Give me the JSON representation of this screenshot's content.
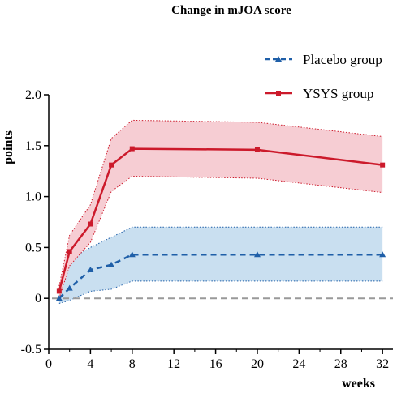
{
  "chart_data": {
    "type": "line",
    "title": "Change in mJOA score",
    "xlabel": "weeks",
    "ylabel": "points",
    "xlim": [
      0,
      33
    ],
    "ylim": [
      -0.5,
      2.0
    ],
    "x_ticks": [
      0,
      4,
      8,
      12,
      16,
      20,
      24,
      28,
      32
    ],
    "y_ticks": [
      -0.5,
      0,
      0.5,
      1.0,
      1.5,
      2.0
    ],
    "y_tick_labels": [
      "-0.5",
      "0",
      "0.5",
      "1.0",
      "1.5",
      "2.0"
    ],
    "reference_line": 0,
    "legend_position": "top-right",
    "series": [
      {
        "name": "Placebo group",
        "color": "#1f5fa8",
        "band_color": "#c9dff0",
        "line_style": "dashed",
        "marker": "triangle",
        "x": [
          1,
          2,
          4,
          6,
          8,
          20,
          32
        ],
        "values": [
          0.0,
          0.1,
          0.28,
          0.33,
          0.43,
          0.43,
          0.43
        ],
        "upper": [
          0.05,
          0.38,
          0.5,
          0.6,
          0.7,
          0.7,
          0.7
        ],
        "lower": [
          -0.05,
          -0.02,
          0.07,
          0.09,
          0.17,
          0.17,
          0.17
        ]
      },
      {
        "name": "YSYS group",
        "color": "#cc1a2b",
        "band_color": "#f6cdd3",
        "line_style": "solid",
        "marker": "square",
        "x": [
          1,
          2,
          4,
          6,
          8,
          20,
          32
        ],
        "values": [
          0.07,
          0.46,
          0.73,
          1.31,
          1.47,
          1.46,
          1.31
        ],
        "upper": [
          0.12,
          0.62,
          0.92,
          1.57,
          1.75,
          1.73,
          1.59
        ],
        "lower": [
          0.0,
          0.32,
          0.55,
          1.05,
          1.2,
          1.18,
          1.04
        ]
      }
    ]
  }
}
